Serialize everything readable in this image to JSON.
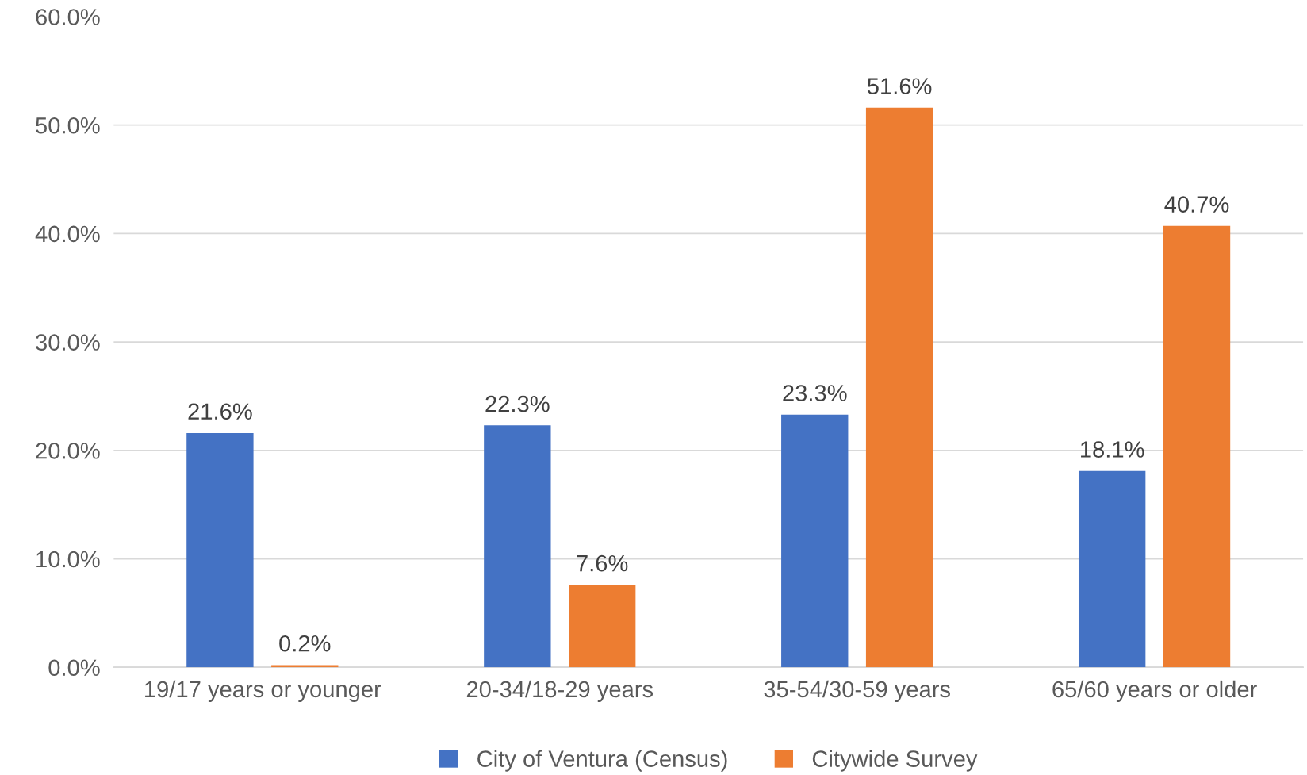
{
  "chart_data": {
    "type": "bar",
    "categories": [
      "19/17 years or younger",
      "20-34/18-29 years",
      "35-54/30-59 years",
      "65/60 years or older"
    ],
    "series": [
      {
        "name": "City of Ventura (Census)",
        "color": "#4472c4",
        "values": [
          21.6,
          22.3,
          23.3,
          18.1
        ]
      },
      {
        "name": "Citywide Survey",
        "color": "#ed7d31",
        "values": [
          0.2,
          7.6,
          51.6,
          40.7
        ]
      }
    ],
    "ylim": [
      0,
      60
    ],
    "yticks": [
      {
        "value": 0,
        "label": "0.0%"
      },
      {
        "value": 10,
        "label": "10.0%"
      },
      {
        "value": 20,
        "label": "20.0%"
      },
      {
        "value": 30,
        "label": "30.0%"
      },
      {
        "value": 40,
        "label": "40.0%"
      },
      {
        "value": 50,
        "label": "50.0%"
      },
      {
        "value": 60,
        "label": "60.0%"
      }
    ],
    "value_labels": [
      [
        "21.6%",
        "22.3%",
        "23.3%",
        "18.1%"
      ],
      [
        "0.2%",
        "7.6%",
        "51.6%",
        "40.7%"
      ]
    ],
    "grid": "y",
    "legend": "bottom"
  }
}
